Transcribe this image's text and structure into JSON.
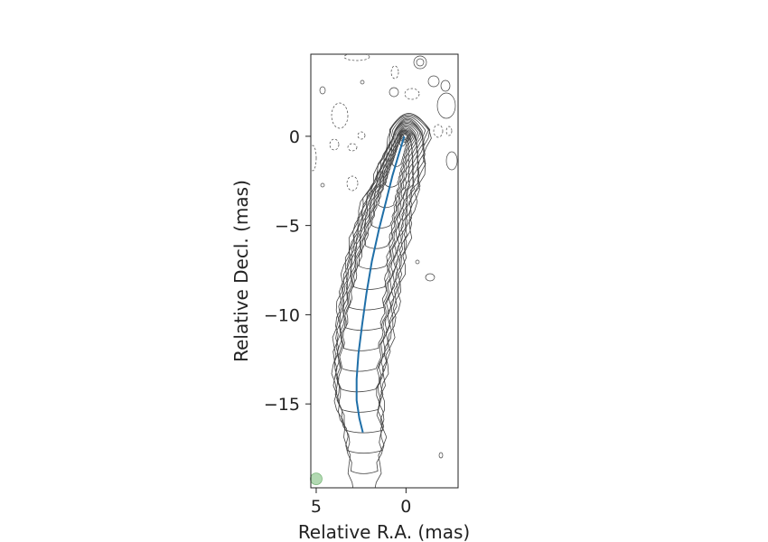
{
  "chart_data": {
    "type": "contour",
    "xlabel": "Relative R.A. (mas)",
    "ylabel": "Relative Decl. (mas)",
    "xlim": [
      5.3,
      -2.9
    ],
    "ylim": [
      -19.7,
      4.6
    ],
    "x_ticks": [
      5,
      0
    ],
    "y_ticks": [
      0,
      -5,
      -10,
      -15
    ],
    "grid": false,
    "ridge_line": {
      "color": "#1f6fa8",
      "x": [
        0.1,
        0.4,
        0.75,
        1.1,
        1.5,
        1.9,
        2.2,
        2.45,
        2.65,
        2.75,
        2.75,
        2.6,
        2.4
      ],
      "y": [
        0.0,
        -1.0,
        -2.2,
        -3.6,
        -5.2,
        -7.0,
        -8.8,
        -10.6,
        -12.2,
        -13.6,
        -14.8,
        -15.8,
        -16.6
      ]
    },
    "contour_color": "#444444",
    "negative_contour_style": "dashed",
    "beam": {
      "x": 5.0,
      "y": -19.2,
      "color": "#9fd09f"
    }
  }
}
